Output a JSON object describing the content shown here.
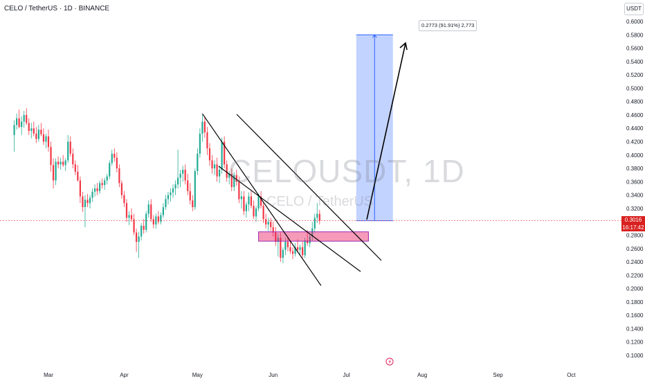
{
  "header": {
    "pair_title": "CELO / TetherUS · 1D · BINANCE",
    "unit_badge": "USDT"
  },
  "watermark": {
    "main": "CELOUSDT, 1D",
    "sub": "CELO / TetherUS"
  },
  "price_tag": {
    "price": "0.3016",
    "countdown": "16:17:42"
  },
  "measure_label": "0.2773 (91.91%) 2,773",
  "chart_data": {
    "type": "candlestick",
    "ylim": [
      0.08,
      0.62
    ],
    "y_ticks": [
      "0.6000",
      "0.5800",
      "0.5600",
      "0.5400",
      "0.5200",
      "0.5000",
      "0.4800",
      "0.4600",
      "0.4400",
      "0.4200",
      "0.4000",
      "0.3800",
      "0.3600",
      "0.3400",
      "0.3200",
      "0.3000",
      "0.2800",
      "0.2600",
      "0.2400",
      "0.2200",
      "0.2000",
      "0.1800",
      "0.1600",
      "0.1400",
      "0.1200",
      "0.1000"
    ],
    "x_ticks": [
      {
        "label": "Mar",
        "day": 0
      },
      {
        "label": "Apr",
        "day": 31
      },
      {
        "label": "May",
        "day": 61
      },
      {
        "label": "Jun",
        "day": 92
      },
      {
        "label": "Jul",
        "day": 122
      },
      {
        "label": "Aug",
        "day": 153
      },
      {
        "label": "Sep",
        "day": 184
      },
      {
        "label": "Oct",
        "day": 214
      }
    ],
    "x_range_days": [
      -14,
      219
    ],
    "current_price": 0.3016,
    "colors": {
      "up": "#22ab94",
      "down": "#f23645",
      "current_line": "#f23645"
    },
    "candles": [
      [
        -14,
        0.43,
        0.452,
        0.405,
        0.445
      ],
      [
        -13,
        0.445,
        0.462,
        0.438,
        0.455
      ],
      [
        -12,
        0.455,
        0.468,
        0.44,
        0.442
      ],
      [
        -11,
        0.442,
        0.458,
        0.43,
        0.45
      ],
      [
        -10,
        0.45,
        0.466,
        0.441,
        0.46
      ],
      [
        -9,
        0.46,
        0.47,
        0.445,
        0.448
      ],
      [
        -8,
        0.448,
        0.455,
        0.43,
        0.436
      ],
      [
        -7,
        0.436,
        0.448,
        0.425,
        0.44
      ],
      [
        -6,
        0.44,
        0.45,
        0.428,
        0.432
      ],
      [
        -5,
        0.432,
        0.442,
        0.418,
        0.424
      ],
      [
        -4,
        0.424,
        0.445,
        0.42,
        0.438
      ],
      [
        -3,
        0.438,
        0.448,
        0.428,
        0.431
      ],
      [
        -2,
        0.431,
        0.44,
        0.415,
        0.42
      ],
      [
        -1,
        0.42,
        0.432,
        0.41,
        0.428
      ],
      [
        0,
        0.428,
        0.438,
        0.405,
        0.412
      ],
      [
        1,
        0.412,
        0.42,
        0.375,
        0.385
      ],
      [
        2,
        0.385,
        0.395,
        0.35,
        0.362
      ],
      [
        3,
        0.362,
        0.395,
        0.355,
        0.39
      ],
      [
        4,
        0.39,
        0.398,
        0.38,
        0.386
      ],
      [
        5,
        0.386,
        0.396,
        0.378,
        0.39
      ],
      [
        6,
        0.39,
        0.4,
        0.382,
        0.385
      ],
      [
        7,
        0.385,
        0.395,
        0.376,
        0.392
      ],
      [
        8,
        0.392,
        0.43,
        0.388,
        0.42
      ],
      [
        9,
        0.42,
        0.428,
        0.398,
        0.402
      ],
      [
        10,
        0.402,
        0.41,
        0.38,
        0.386
      ],
      [
        11,
        0.386,
        0.392,
        0.37,
        0.375
      ],
      [
        12,
        0.375,
        0.385,
        0.36,
        0.362
      ],
      [
        13,
        0.362,
        0.368,
        0.328,
        0.338
      ],
      [
        14,
        0.338,
        0.345,
        0.315,
        0.322
      ],
      [
        15,
        0.322,
        0.34,
        0.292,
        0.333
      ],
      [
        16,
        0.333,
        0.342,
        0.322,
        0.328
      ],
      [
        17,
        0.328,
        0.34,
        0.32,
        0.336
      ],
      [
        18,
        0.336,
        0.35,
        0.33,
        0.345
      ],
      [
        19,
        0.345,
        0.356,
        0.338,
        0.35
      ],
      [
        20,
        0.35,
        0.358,
        0.34,
        0.346
      ],
      [
        21,
        0.346,
        0.362,
        0.342,
        0.358
      ],
      [
        22,
        0.358,
        0.365,
        0.35,
        0.355
      ],
      [
        23,
        0.355,
        0.366,
        0.348,
        0.362
      ],
      [
        24,
        0.362,
        0.372,
        0.356,
        0.368
      ],
      [
        25,
        0.368,
        0.392,
        0.364,
        0.388
      ],
      [
        26,
        0.388,
        0.408,
        0.384,
        0.402
      ],
      [
        27,
        0.402,
        0.41,
        0.39,
        0.396
      ],
      [
        28,
        0.396,
        0.404,
        0.374,
        0.38
      ],
      [
        29,
        0.38,
        0.386,
        0.352,
        0.358
      ],
      [
        30,
        0.358,
        0.362,
        0.335,
        0.34
      ],
      [
        31,
        0.34,
        0.346,
        0.322,
        0.328
      ],
      [
        32,
        0.328,
        0.334,
        0.3,
        0.306
      ],
      [
        33,
        0.306,
        0.316,
        0.295,
        0.31
      ],
      [
        34,
        0.31,
        0.32,
        0.3,
        0.304
      ],
      [
        35,
        0.304,
        0.312,
        0.28,
        0.284
      ],
      [
        36,
        0.284,
        0.29,
        0.255,
        0.27
      ],
      [
        37,
        0.27,
        0.285,
        0.246,
        0.278
      ],
      [
        38,
        0.278,
        0.298,
        0.272,
        0.294
      ],
      [
        39,
        0.294,
        0.304,
        0.282,
        0.288
      ],
      [
        40,
        0.288,
        0.316,
        0.284,
        0.312
      ],
      [
        41,
        0.312,
        0.332,
        0.306,
        0.326
      ],
      [
        42,
        0.326,
        0.334,
        0.3,
        0.304
      ],
      [
        43,
        0.304,
        0.31,
        0.29,
        0.296
      ],
      [
        44,
        0.296,
        0.312,
        0.29,
        0.308
      ],
      [
        45,
        0.308,
        0.316,
        0.296,
        0.3
      ],
      [
        46,
        0.3,
        0.314,
        0.296,
        0.31
      ],
      [
        47,
        0.31,
        0.328,
        0.306,
        0.322
      ],
      [
        48,
        0.322,
        0.34,
        0.318,
        0.334
      ],
      [
        49,
        0.334,
        0.345,
        0.326,
        0.34
      ],
      [
        50,
        0.34,
        0.35,
        0.33,
        0.344
      ],
      [
        51,
        0.344,
        0.356,
        0.336,
        0.35
      ],
      [
        52,
        0.35,
        0.362,
        0.34,
        0.356
      ],
      [
        53,
        0.356,
        0.408,
        0.35,
        0.366
      ],
      [
        54,
        0.366,
        0.378,
        0.352,
        0.372
      ],
      [
        55,
        0.372,
        0.384,
        0.36,
        0.378
      ],
      [
        56,
        0.378,
        0.386,
        0.356,
        0.362
      ],
      [
        57,
        0.362,
        0.372,
        0.34,
        0.346
      ],
      [
        58,
        0.346,
        0.358,
        0.326,
        0.332
      ],
      [
        59,
        0.332,
        0.34,
        0.316,
        0.322
      ],
      [
        60,
        0.322,
        0.38,
        0.318,
        0.376
      ],
      [
        61,
        0.376,
        0.41,
        0.37,
        0.402
      ],
      [
        62,
        0.402,
        0.44,
        0.396,
        0.432
      ],
      [
        63,
        0.432,
        0.46,
        0.42,
        0.45
      ],
      [
        64,
        0.45,
        0.458,
        0.426,
        0.434
      ],
      [
        65,
        0.434,
        0.442,
        0.4,
        0.41
      ],
      [
        66,
        0.41,
        0.418,
        0.384,
        0.392
      ],
      [
        67,
        0.392,
        0.4,
        0.372,
        0.38
      ],
      [
        68,
        0.38,
        0.392,
        0.37,
        0.386
      ],
      [
        69,
        0.386,
        0.396,
        0.36,
        0.368
      ],
      [
        70,
        0.368,
        0.384,
        0.358,
        0.378
      ],
      [
        71,
        0.378,
        0.426,
        0.372,
        0.42
      ],
      [
        72,
        0.42,
        0.428,
        0.38,
        0.386
      ],
      [
        73,
        0.386,
        0.392,
        0.36,
        0.366
      ],
      [
        74,
        0.366,
        0.376,
        0.356,
        0.372
      ],
      [
        75,
        0.372,
        0.38,
        0.346,
        0.352
      ],
      [
        76,
        0.352,
        0.374,
        0.346,
        0.37
      ],
      [
        77,
        0.37,
        0.378,
        0.354,
        0.36
      ],
      [
        78,
        0.36,
        0.368,
        0.328,
        0.334
      ],
      [
        79,
        0.334,
        0.346,
        0.32,
        0.338
      ],
      [
        80,
        0.338,
        0.346,
        0.31,
        0.316
      ],
      [
        81,
        0.316,
        0.33,
        0.306,
        0.326
      ],
      [
        82,
        0.326,
        0.344,
        0.316,
        0.338
      ],
      [
        83,
        0.338,
        0.346,
        0.32,
        0.324
      ],
      [
        84,
        0.324,
        0.332,
        0.304,
        0.308
      ],
      [
        85,
        0.308,
        0.324,
        0.3,
        0.32
      ],
      [
        86,
        0.32,
        0.342,
        0.316,
        0.338
      ],
      [
        87,
        0.338,
        0.346,
        0.32,
        0.324
      ],
      [
        88,
        0.324,
        0.33,
        0.298,
        0.304
      ],
      [
        89,
        0.304,
        0.312,
        0.29,
        0.296
      ],
      [
        90,
        0.296,
        0.306,
        0.286,
        0.3
      ],
      [
        91,
        0.3,
        0.306,
        0.286,
        0.292
      ],
      [
        92,
        0.292,
        0.3,
        0.278,
        0.284
      ],
      [
        93,
        0.284,
        0.292,
        0.264,
        0.27
      ],
      [
        94,
        0.27,
        0.282,
        0.248,
        0.276
      ],
      [
        95,
        0.276,
        0.284,
        0.24,
        0.246
      ],
      [
        96,
        0.246,
        0.262,
        0.238,
        0.258
      ],
      [
        97,
        0.258,
        0.276,
        0.25,
        0.27
      ],
      [
        98,
        0.27,
        0.278,
        0.256,
        0.262
      ],
      [
        99,
        0.262,
        0.272,
        0.252,
        0.256
      ],
      [
        100,
        0.256,
        0.262,
        0.244,
        0.252
      ],
      [
        101,
        0.252,
        0.268,
        0.248,
        0.262
      ],
      [
        102,
        0.262,
        0.274,
        0.254,
        0.258
      ],
      [
        103,
        0.258,
        0.266,
        0.25,
        0.262
      ],
      [
        104,
        0.262,
        0.27,
        0.246,
        0.25
      ],
      [
        105,
        0.25,
        0.276,
        0.246,
        0.272
      ],
      [
        106,
        0.272,
        0.288,
        0.264,
        0.268
      ],
      [
        107,
        0.268,
        0.282,
        0.262,
        0.278
      ],
      [
        108,
        0.278,
        0.3,
        0.272,
        0.29
      ],
      [
        109,
        0.29,
        0.312,
        0.284,
        0.306
      ],
      [
        110,
        0.306,
        0.328,
        0.298,
        0.312
      ],
      [
        111,
        0.312,
        0.318,
        0.296,
        0.3016
      ]
    ]
  },
  "drawings": {
    "channel_upper": [
      [
        63,
        0.462
      ],
      [
        96,
        0.275
      ]
    ],
    "channel_lower": [
      [
        41,
        0.38
      ],
      [
        102,
        0.23
      ]
    ],
    "support_zone": {
      "day_start": 86,
      "day_end": 131,
      "y_low": 0.271,
      "y_high": 0.285
    },
    "arrow": {
      "from": [
        104,
        0.305
      ],
      "to": [
        121,
        0.568
      ]
    },
    "target_box": {
      "day_start": 126,
      "day_end": 141,
      "y_low": 0.3016,
      "y_high": 0.58
    }
  }
}
